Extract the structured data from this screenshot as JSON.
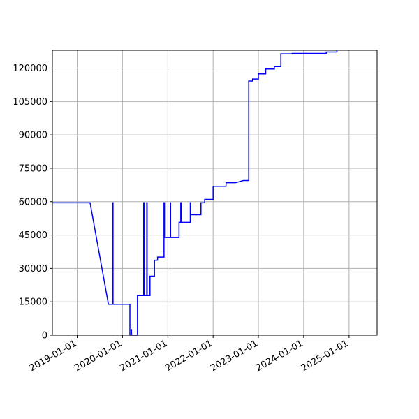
{
  "chart_data": {
    "type": "line",
    "title": "",
    "xlabel": "",
    "ylabel": "",
    "x_axis_kind": "date",
    "xlim": [
      "2018-06-15",
      "2025-08-15"
    ],
    "ylim": [
      0,
      128000
    ],
    "grid": true,
    "legend": "none",
    "line_color": "#0000ff",
    "grid_color": "#b0b0b0",
    "x_ticks": [
      "2019-01-01",
      "2020-01-01",
      "2021-01-01",
      "2022-01-01",
      "2023-01-01",
      "2024-01-01",
      "2025-01-01"
    ],
    "y_ticks": [
      0,
      15000,
      30000,
      45000,
      60000,
      75000,
      90000,
      105000,
      120000
    ],
    "y_tick_labels": [
      "0",
      "15000",
      "30000",
      "45000",
      "60000",
      "75000",
      "90000",
      "105000",
      "120000"
    ],
    "series": [
      {
        "x": [
          "2018-06-15",
          "2019-04-15",
          "2019-09-10",
          "2019-10-15",
          "2019-10-15",
          "2019-10-17",
          "2019-10-17",
          "2020-03-01",
          "2020-03-01",
          "2020-03-12",
          "2020-03-12",
          "2020-03-14",
          "2020-03-14",
          "2020-05-01",
          "2020-05-01",
          "2020-06-20",
          "2020-06-20",
          "2020-06-23",
          "2020-06-23",
          "2020-07-15",
          "2020-07-15",
          "2020-07-18",
          "2020-07-18",
          "2020-08-10",
          "2020-08-10",
          "2020-09-15",
          "2020-09-15",
          "2020-10-10",
          "2020-10-10",
          "2020-12-01",
          "2020-12-01",
          "2020-12-05",
          "2020-12-05",
          "2021-01-20",
          "2021-01-20",
          "2021-01-23",
          "2021-01-23",
          "2021-04-01",
          "2021-04-01",
          "2021-04-15",
          "2021-04-15",
          "2021-04-18",
          "2021-04-18",
          "2021-07-01",
          "2021-07-01",
          "2021-07-04",
          "2021-07-04",
          "2021-09-25",
          "2021-09-25",
          "2021-09-28",
          "2021-09-28",
          "2021-10-25",
          "2021-10-25",
          "2022-01-01",
          "2022-01-01",
          "2022-04-15",
          "2022-04-15",
          "2022-07-01",
          "2022-09-01",
          "2022-10-15",
          "2022-10-15",
          "2022-11-15",
          "2022-11-15",
          "2023-01-01",
          "2023-01-01",
          "2023-03-01",
          "2023-03-01",
          "2023-05-10",
          "2023-05-10",
          "2023-07-01",
          "2023-07-01",
          "2023-10-01",
          "2023-10-01",
          "2024-07-01",
          "2024-07-01",
          "2024-09-25",
          "2024-09-25"
        ],
        "y": [
          59500,
          59500,
          13900,
          13900,
          59500,
          59500,
          13900,
          13900,
          0,
          0,
          2500,
          2500,
          0,
          0,
          17800,
          17800,
          59500,
          59500,
          17800,
          17800,
          59500,
          59500,
          17800,
          17800,
          26500,
          26500,
          33700,
          33700,
          35100,
          35100,
          59500,
          59500,
          43900,
          43900,
          59500,
          59500,
          43900,
          43900,
          50700,
          50700,
          59500,
          59500,
          50700,
          50700,
          59500,
          59500,
          54100,
          54100,
          59500,
          59500,
          59500,
          59500,
          61000,
          61000,
          66900,
          66900,
          68500,
          68500,
          69500,
          69500,
          114200,
          114200,
          115100,
          115100,
          117400,
          117400,
          119600,
          119600,
          120700,
          120700,
          126400,
          126400,
          126600,
          126600,
          127200,
          127200,
          128000
        ]
      }
    ]
  }
}
